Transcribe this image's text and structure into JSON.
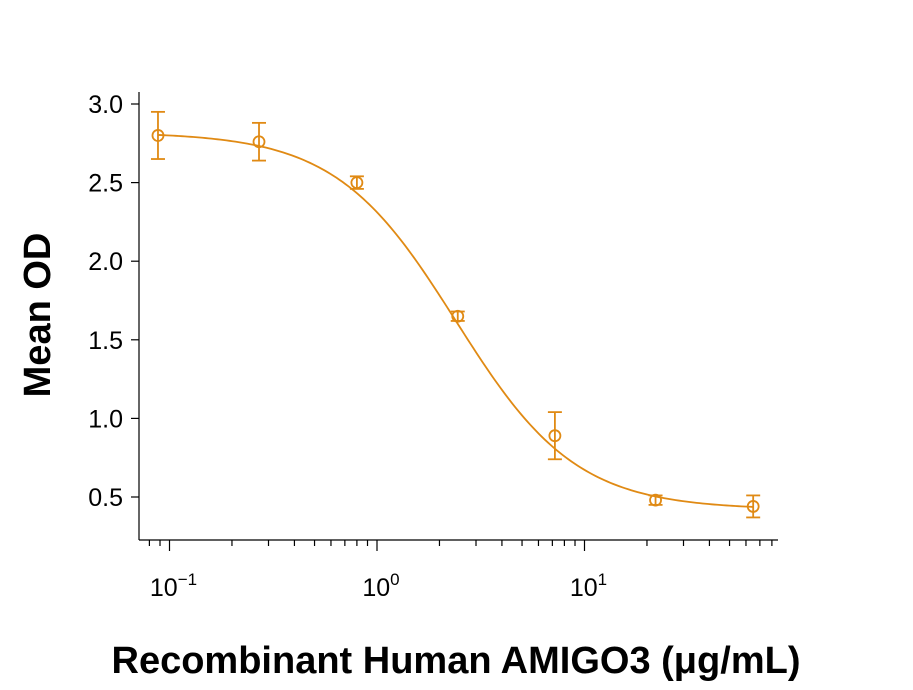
{
  "chart_data": {
    "type": "scatter",
    "xlabel": "Recombinant Human AMIGO3 (μg/mL)",
    "ylabel": "Mean OD",
    "x_scale": "log",
    "xlim": [
      0.065,
      80
    ],
    "ylim": [
      0.3,
      3.0
    ],
    "y_ticks": [
      "3.0",
      "2.5",
      "2.0",
      "1.5",
      "1.0",
      "0.5"
    ],
    "x_ticks": [
      {
        "value": 0.1,
        "base": "10",
        "exp": "−1"
      },
      {
        "value": 1,
        "base": "10",
        "exp": "0"
      },
      {
        "value": 10,
        "base": "10",
        "exp": "1"
      }
    ],
    "grid": false,
    "color": "#E08A14",
    "series": [
      {
        "points": [
          {
            "x": 0.088,
            "y": 2.8,
            "err": 0.15
          },
          {
            "x": 0.27,
            "y": 2.76,
            "err": 0.12
          },
          {
            "x": 0.8,
            "y": 2.5,
            "err": 0.04
          },
          {
            "x": 2.45,
            "y": 1.65,
            "err": 0.03
          },
          {
            "x": 7.2,
            "y": 0.89,
            "err": 0.15
          },
          {
            "x": 22.0,
            "y": 0.48,
            "err": 0.03
          },
          {
            "x": 65.0,
            "y": 0.44,
            "err": 0.07
          }
        ],
        "fit": {
          "model": "4PL",
          "top": 2.82,
          "bottom": 0.42,
          "ec50": 2.4,
          "hill": 1.5
        }
      }
    ]
  }
}
